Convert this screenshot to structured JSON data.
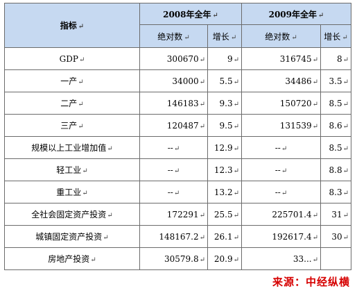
{
  "table": {
    "header": {
      "indicator": "指标",
      "year_2008": "2008年全年",
      "year_2009": "2009年全年",
      "absolute": "绝对数",
      "growth": "增长"
    },
    "rows": [
      {
        "label": "GDP",
        "abs2008": "300670",
        "g2008": "9",
        "abs2009": "316745",
        "g2009": "8"
      },
      {
        "label": "一产",
        "abs2008": "34000",
        "g2008": "5.5",
        "abs2009": "34486",
        "g2009": "3.5"
      },
      {
        "label": "二产",
        "abs2008": "146183",
        "g2008": "9.3",
        "abs2009": "150720",
        "g2009": "8.5"
      },
      {
        "label": "三产",
        "abs2008": "120487",
        "g2008": "9.5",
        "abs2009": "131539",
        "g2009": "8.6"
      },
      {
        "label": "规模以上工业增加值",
        "abs2008": "--",
        "g2008": "12.9",
        "abs2009": "--",
        "g2009": "8.5"
      },
      {
        "label": "轻工业",
        "abs2008": "--",
        "g2008": "12.3",
        "abs2009": "--",
        "g2009": "8.8"
      },
      {
        "label": "重工业",
        "abs2008": "--",
        "g2008": "13.2",
        "abs2009": "--",
        "g2009": "8.3"
      },
      {
        "label": "全社会固定资产投资",
        "abs2008": "172291",
        "g2008": "25.5",
        "abs2009": "225701.4",
        "g2009": "31"
      },
      {
        "label": "城镇固定资产投资",
        "abs2008": "148167.2",
        "g2008": "26.1",
        "abs2009": "192617.4",
        "g2009": "30"
      },
      {
        "label": "房地产投资",
        "abs2008": "30579.8",
        "g2008": "20.9",
        "abs2009": "33...",
        "g2009": ""
      }
    ],
    "return_mark": "↵"
  },
  "source": "来源：中经纵横"
}
